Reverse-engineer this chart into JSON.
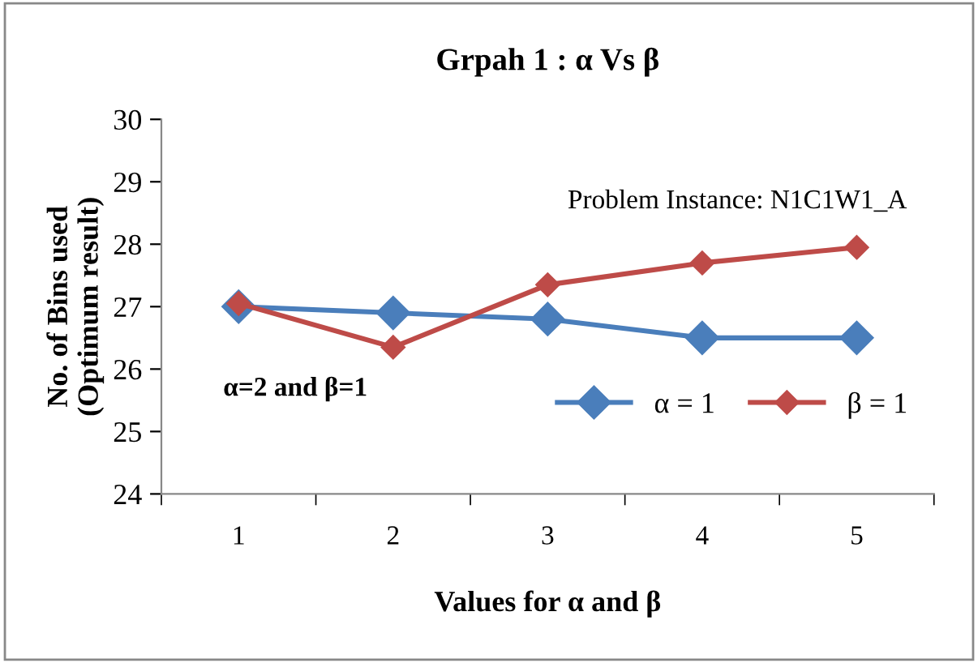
{
  "chart_data": {
    "type": "line",
    "title": "Grpah 1 : α Vs β",
    "xlabel": "Values for α and β",
    "ylabel": "No. of Bins used\n(Optimum result)",
    "categories": [
      "1",
      "2",
      "3",
      "4",
      "5"
    ],
    "series": [
      {
        "name": "α = 1",
        "color": "#4a7ebb",
        "values": [
          27.0,
          26.9,
          26.8,
          26.5,
          26.5
        ]
      },
      {
        "name": "β = 1",
        "color": "#be4b48",
        "values": [
          27.05,
          26.35,
          27.35,
          27.7,
          27.95
        ]
      }
    ],
    "ylim": [
      24,
      30
    ],
    "yticks": [
      24,
      25,
      26,
      27,
      28,
      29,
      30
    ],
    "annotations": [
      "Problem Instance: N1C1W1_A",
      "α=2 and β=1"
    ],
    "legend": "bottom right",
    "marker": "diamond",
    "line_style": "solid",
    "grid": false
  }
}
